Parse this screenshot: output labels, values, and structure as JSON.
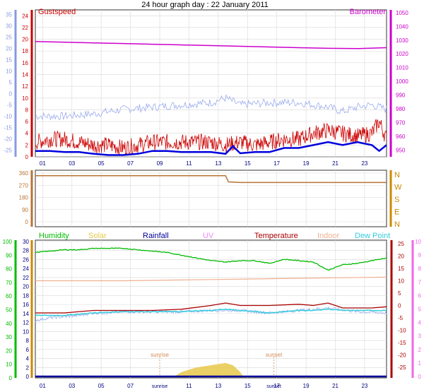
{
  "title": "24 hour graph day : 22 January 2011",
  "colors": {
    "gust": "#cc0000",
    "wind": "#0000dd",
    "temp_axis": "#cc0000",
    "baro": "#cc00cc",
    "baro_axis": "#cc00cc",
    "wind_blue_axis": "#8899dd",
    "light_blue": "#99aaee",
    "dir": "#b87333",
    "humidity": "#00bb00",
    "solar": "#e8c84a",
    "rainfall": "#000099",
    "uv": "#ee88ff",
    "temperature": "#aa0000",
    "indoor": "#f0b090",
    "dewpoint": "#33ccdd",
    "grid": "#d8d8d8",
    "frame": "#333333",
    "axis_green": "#00bb00",
    "axis_orange": "#cc8800",
    "axis_red": "#aa0000",
    "axis_pink": "#ee66ee",
    "axis_navy": "#000080",
    "sun_marker": "#d28a55"
  },
  "chart_data": [
    {
      "type": "line",
      "title": "",
      "legend": [
        "Gustspeed",
        "Barometer"
      ],
      "xlabel": "",
      "x_ticks": [
        "01",
        "03",
        "05",
        "07",
        "09",
        "11",
        "13",
        "15",
        "17",
        "19",
        "21",
        "23"
      ],
      "left_axis_far": {
        "ticks": [
          35,
          30,
          25,
          20,
          15,
          10,
          5,
          0,
          -5,
          -10,
          -15,
          -20,
          -25
        ]
      },
      "left_axis": {
        "label": "",
        "ticks": [
          24,
          22,
          20,
          18,
          16,
          14,
          12,
          10,
          8,
          6,
          4,
          2,
          0
        ],
        "ylim": [
          0,
          25
        ]
      },
      "right_axis": {
        "label": "",
        "ticks": [
          1050,
          1040,
          1030,
          1020,
          1010,
          1000,
          990,
          980,
          970,
          960,
          950
        ],
        "ylim": [
          945,
          1052
        ]
      },
      "series": [
        {
          "name": "Barometer",
          "axis": "right",
          "x": [
            0,
            2,
            4,
            6,
            8,
            10,
            12,
            14,
            16,
            18,
            20,
            22,
            24
          ],
          "values": [
            1029,
            1028.5,
            1028,
            1027.5,
            1027,
            1026.5,
            1026,
            1025.5,
            1025,
            1024.5,
            1024,
            1023.8,
            1024.5
          ]
        },
        {
          "name": "",
          "axis": "left_far",
          "x": [
            0,
            2,
            4,
            6,
            8,
            10,
            12,
            13,
            14,
            16,
            18,
            20,
            21,
            22,
            23,
            24
          ],
          "values": [
            -10,
            -10,
            -9,
            -7,
            -6,
            -5,
            -4,
            -2,
            -5,
            -4,
            -4,
            -6,
            -8,
            -6,
            -5,
            -7
          ]
        },
        {
          "name": "Gustspeed",
          "axis": "left",
          "x": [
            0,
            1,
            2,
            3,
            4,
            5,
            6,
            7,
            8,
            9,
            10,
            11,
            12,
            13,
            14,
            15,
            16,
            17,
            18,
            19,
            20,
            21,
            22,
            23,
            23.5,
            24
          ],
          "values": [
            2.5,
            3,
            3,
            2.5,
            2,
            2,
            1.5,
            2,
            2.5,
            2.5,
            2.5,
            2.5,
            2.5,
            2,
            2.5,
            2,
            2.5,
            3,
            3,
            4,
            4.5,
            4,
            3.5,
            4,
            6,
            3
          ]
        },
        {
          "name": "",
          "axis": "left",
          "x": [
            0,
            1,
            2,
            3,
            4,
            5,
            6,
            7,
            8,
            9,
            10,
            11,
            12,
            13,
            13.5,
            14,
            15,
            16,
            17,
            18,
            19,
            20,
            21,
            22,
            23,
            23.5,
            24
          ],
          "values": [
            1,
            1,
            0.8,
            0.8,
            0.5,
            0.3,
            0.3,
            0.5,
            1,
            1,
            0.8,
            0.8,
            0.8,
            0.5,
            1.8,
            0.6,
            0.8,
            0.8,
            1.5,
            1.5,
            2,
            2.5,
            2,
            2.5,
            2,
            1,
            2
          ]
        }
      ]
    },
    {
      "type": "line",
      "title": "",
      "x_ticks": [],
      "left_axis": {
        "label": "",
        "ticks": [
          360,
          270,
          180,
          90,
          0
        ],
        "ylim": [
          0,
          360
        ]
      },
      "right_axis": {
        "label": "",
        "ticks": [
          "N",
          "W",
          "S",
          "E",
          "N"
        ]
      },
      "series": [
        {
          "name": "",
          "x": [
            0,
            13,
            13.2,
            14,
            24
          ],
          "values": [
            340,
            340,
            295,
            290,
            290
          ]
        }
      ]
    },
    {
      "type": "line",
      "title": "",
      "legend": [
        "Humidity",
        "Solar",
        "Rainfall",
        "UV",
        "Temperature",
        "Indoor",
        "Dew Point"
      ],
      "x_ticks": [
        "01",
        "03",
        "05",
        "07",
        "sunrise",
        "11",
        "13",
        "15",
        "sunset",
        "17",
        "19",
        "21",
        "23"
      ],
      "markers": [
        {
          "name": "sunrise",
          "x": 8.5
        },
        {
          "name": "sunset",
          "x": 16.3
        }
      ],
      "axis_far_left": {
        "ticks": [
          100,
          90,
          80,
          70,
          60,
          50,
          40,
          30,
          20,
          10,
          0
        ],
        "ylim": [
          0,
          100
        ]
      },
      "axis_left": {
        "ticks": [
          30,
          28,
          26,
          24,
          22,
          20,
          18,
          16,
          14,
          12,
          10,
          8,
          6,
          4,
          2,
          0
        ],
        "ylim": [
          0,
          30
        ]
      },
      "axis_right": {
        "ticks": [
          25,
          20,
          15,
          10,
          5,
          0,
          -5,
          -10,
          -15,
          -20,
          -25
        ],
        "ylim": [
          -27,
          25
        ]
      },
      "axis_far_right": {
        "ticks": [
          10,
          9,
          8,
          7,
          6,
          5,
          4,
          3,
          2,
          1,
          0
        ],
        "ylim": [
          0,
          10
        ]
      },
      "series": [
        {
          "name": "Humidity",
          "axis": "far_left",
          "x": [
            0,
            1,
            2,
            3,
            4,
            5,
            6,
            7,
            8,
            9,
            10,
            11,
            12,
            13,
            14,
            15,
            16,
            17,
            18,
            19,
            19.5,
            20,
            21,
            22,
            23,
            24
          ],
          "values": [
            92,
            93,
            94,
            94,
            95,
            95,
            95,
            94,
            93,
            92,
            90,
            88,
            86,
            85,
            86,
            86,
            84,
            87,
            86,
            85,
            82,
            79,
            83,
            84,
            86,
            88
          ]
        },
        {
          "name": "Indoor",
          "axis": "right",
          "x": [
            0,
            6,
            12,
            18,
            24
          ],
          "values": [
            10,
            10,
            10.5,
            11,
            11.5
          ]
        },
        {
          "name": "Temperature",
          "axis": "right",
          "x": [
            0,
            2,
            4,
            6,
            8,
            10,
            12,
            13,
            14,
            16,
            18,
            19,
            20,
            21,
            22,
            23,
            24
          ],
          "values": [
            -3,
            -3,
            -2,
            -2,
            -2,
            -1.5,
            0,
            1,
            0,
            0,
            0.5,
            0,
            1,
            -1,
            -1,
            -1,
            -0.5
          ]
        },
        {
          "name": "Dew Point",
          "axis": "right",
          "x": [
            0,
            2,
            4,
            6,
            8,
            10,
            12,
            13,
            14,
            16,
            18,
            19,
            20,
            21,
            22,
            23,
            24
          ],
          "values": [
            -4,
            -4,
            -3,
            -2.5,
            -2.5,
            -2.5,
            -2,
            -1.5,
            -2,
            -3,
            -2,
            -2,
            -1.5,
            -2,
            -2,
            -2,
            -2
          ]
        },
        {
          "name": "",
          "axis": "right",
          "x": [
            0,
            1,
            2,
            3,
            4,
            5,
            6,
            8,
            10,
            12,
            14,
            16,
            18,
            20,
            22,
            24
          ],
          "values": [
            -6,
            -5,
            -4.5,
            -4,
            -3,
            -3,
            -2.5,
            -2.5,
            -2.5,
            -2,
            -2,
            -3,
            -2,
            -1,
            -2.5,
            -3
          ]
        },
        {
          "name": "Solar",
          "axis": "left",
          "x": [
            9.5,
            10,
            11,
            12,
            13,
            13.5,
            14,
            14.2
          ],
          "values": [
            0,
            1,
            2,
            2.5,
            3,
            2.5,
            1,
            0
          ]
        },
        {
          "name": "Rainfall",
          "axis": "left",
          "x": [
            0,
            24
          ],
          "values": [
            0,
            0
          ]
        }
      ]
    }
  ]
}
